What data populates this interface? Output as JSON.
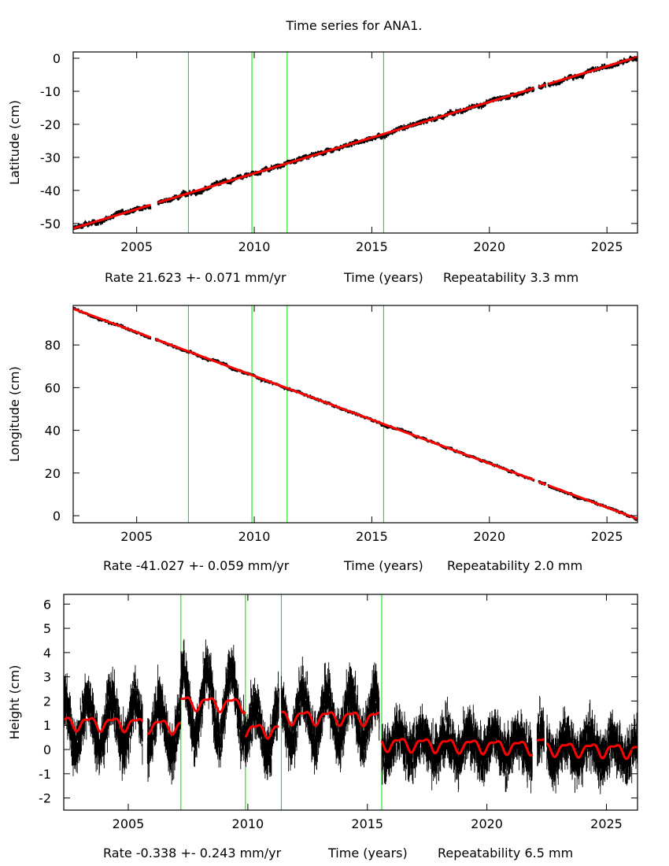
{
  "title": "Time series for ANA1.",
  "colors": {
    "observations": "#000000",
    "model": "#ff0000",
    "breaks": "#00dd00",
    "frame": "#000000"
  },
  "chart_data": [
    {
      "type": "scatter",
      "ylabel": "Latitude (cm)",
      "xlabel": "Time (years)",
      "rate": "Rate 21.623 +- 0.071 mm/yr",
      "repeatability": "Repeatability 3.3 mm",
      "xlim": [
        2002.3,
        2026.3
      ],
      "ylim": [
        -52.9,
        1.9
      ],
      "xticks": [
        2005,
        2010,
        2015,
        2020,
        2025
      ],
      "yticks": [
        0,
        -10,
        -20,
        -30,
        -40,
        -50
      ],
      "breaks": [
        2007.2,
        2009.9,
        2011.4,
        2015.5
      ],
      "model_segments": [
        {
          "start": 2002.3,
          "end": 2005.6,
          "y_start": -51.5,
          "y_end": -44.4
        },
        {
          "start": 2005.9,
          "end": 2021.9,
          "y_start": -43.7,
          "y_end": -9.1
        },
        {
          "start": 2022.1,
          "end": 2022.4,
          "y_start": -8.7,
          "y_end": -8.0
        },
        {
          "start": 2022.5,
          "end": 2026.3,
          "y_start": -7.8,
          "y_end": 0.4
        }
      ]
    },
    {
      "type": "scatter",
      "ylabel": "Longitude (cm)",
      "xlabel": "Time (years)",
      "rate": "Rate -41.027 +- 0.059 mm/yr",
      "repeatability": "Repeatability 2.0 mm",
      "xlim": [
        2002.3,
        2026.3
      ],
      "ylim": [
        -3.3,
        98.5
      ],
      "xticks": [
        2005,
        2010,
        2015,
        2020,
        2025
      ],
      "yticks": [
        80,
        60,
        40,
        20,
        0
      ],
      "breaks": [
        2007.2,
        2009.9,
        2011.4,
        2015.5
      ],
      "model_segments": [
        {
          "start": 2002.3,
          "end": 2005.6,
          "y_start": 97.0,
          "y_end": 83.5
        },
        {
          "start": 2005.8,
          "end": 2021.9,
          "y_start": 82.7,
          "y_end": 16.7
        },
        {
          "start": 2022.1,
          "end": 2022.4,
          "y_start": 15.9,
          "y_end": 14.6
        },
        {
          "start": 2022.5,
          "end": 2026.3,
          "y_start": 14.2,
          "y_end": -1.5
        }
      ]
    },
    {
      "type": "scatter",
      "ylabel": "Height (cm)",
      "xlabel": "Time (years)",
      "rate": "Rate -0.338 +- 0.243 mm/yr",
      "repeatability": "Repeatability 6.5 mm",
      "xlim": [
        2002.3,
        2026.3
      ],
      "ylim": [
        -2.5,
        6.4
      ],
      "xticks": [
        2005,
        2010,
        2015,
        2020,
        2025
      ],
      "yticks": [
        6,
        5,
        4,
        3,
        2,
        1,
        0,
        -1,
        -2
      ],
      "breaks": [
        2007.2,
        2009.9,
        2011.4,
        2015.6
      ],
      "seasonal": {
        "annual_amplitude_cm": 0.25,
        "semiannual_amplitude_cm": 0.1
      },
      "model_segments": [
        {
          "start": 2002.3,
          "end": 2005.6,
          "y_start": 1.1,
          "y_end": 1.05
        },
        {
          "start": 2005.8,
          "end": 2007.2,
          "y_start": 1.0,
          "y_end": 0.95
        },
        {
          "start": 2007.2,
          "end": 2009.9,
          "y_start": 1.95,
          "y_end": 1.85
        },
        {
          "start": 2009.9,
          "end": 2011.3,
          "y_start": 0.8,
          "y_end": 0.8
        },
        {
          "start": 2011.4,
          "end": 2015.5,
          "y_start": 1.35,
          "y_end": 1.3
        },
        {
          "start": 2015.6,
          "end": 2021.9,
          "y_start": 0.25,
          "y_end": 0.1
        },
        {
          "start": 2022.1,
          "end": 2022.4,
          "y_start": 0.25,
          "y_end": 0.25
        },
        {
          "start": 2022.5,
          "end": 2026.3,
          "y_start": 0.05,
          "y_end": -0.05
        }
      ]
    }
  ]
}
